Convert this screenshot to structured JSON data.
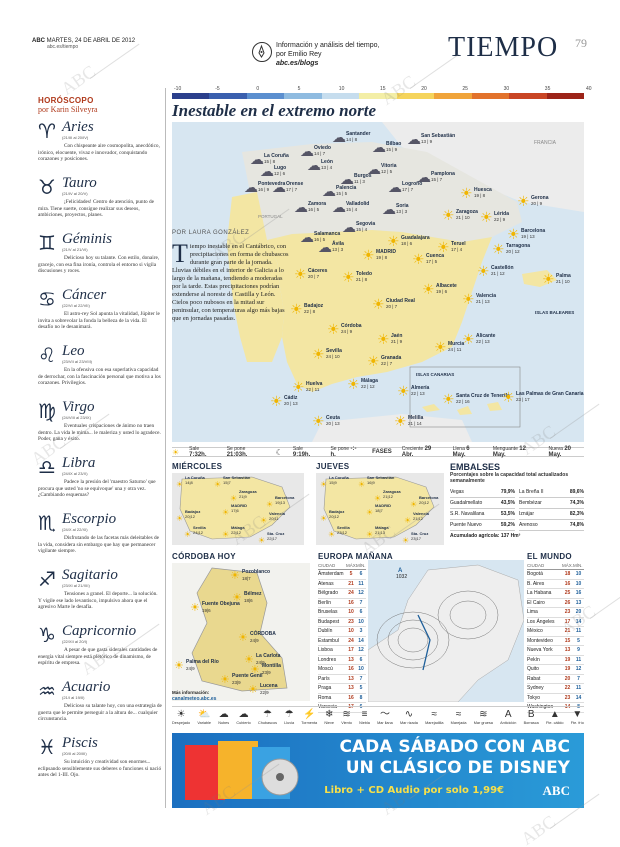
{
  "header": {
    "paper": "ABC",
    "date": "MARTES, 24 DE ABRIL DE 2012",
    "url": "abc.es/tiempo",
    "blog_text": "Información y análisis del tiempo, por Emilio Rey",
    "blog_url": "abc.es/blogs",
    "section": "TIEMPO",
    "page": "79"
  },
  "horoscope": {
    "title": "HORÓSCOPO",
    "author": "por Karin Silveyra",
    "signs": [
      {
        "glyph": "♈",
        "name": "Aries",
        "dates": "(21/III al 20/IV)",
        "text": "Con chispeante aire cosmopolita, anecdótico, irónico, elocuente, vivaz e innovador, conquistando corazones y posiciones."
      },
      {
        "glyph": "♉",
        "name": "Tauro",
        "dates": "(21/IV al 20/V)",
        "text": "¡Felicidades! Centro de atención, punto de mira. Tiene suerte, consigue realizar sus deseos, ambiciones, proyectos, planes."
      },
      {
        "glyph": "♊",
        "name": "Géminis",
        "dates": "(21/V al 21/VI)",
        "text": "Delicioso hoy su talante. Con estilo, donaire, gracejo, con esa fina ironía, controla el entorno si vigila discusiones y roces."
      },
      {
        "glyph": "♋",
        "name": "Cáncer",
        "dates": "(22/VI al 22/VII)",
        "text": "El astro-rey Sol apunta la vitalidad, Júpiter le invita a sobrevolar la fonda la belleza de la vida. El desafío no le desanimará."
      },
      {
        "glyph": "♌",
        "name": "Leo",
        "dates": "(23/VII al 23/VIII)",
        "text": "En la ofensiva con esa superlativa capacidad de derrochar, con la fascinación personal que motiva a los corazones. Privilegios."
      },
      {
        "glyph": "♍",
        "name": "Virgo",
        "dates": "(24/VIII al 23/IX)",
        "text": "Eventuales crispaciones de ánimo no traen dentro. La vida le mima... le maleriza y usted lo agradece. Poder, gana y éxito."
      },
      {
        "glyph": "♎",
        "name": "Libra",
        "dates": "(24/IX al 23/X)",
        "text": "Padece la presión del 'maestro Saturno' que procura que usted 'no se equivoque' una y otra vez. ¿Cambiando esquemas?"
      },
      {
        "glyph": "♏",
        "name": "Escorpio",
        "dates": "(24/X al 22/XI)",
        "text": "Disfrutando de las facetas más deleitables de la vida, considera sin embargo que hay que permanecer vigilante siempre."
      },
      {
        "glyph": "♐",
        "name": "Sagitario",
        "dates": "(23/XI al 21/XII)",
        "text": "Tensiones a granel. El deporte... la solución. Y vigile ese lado levantisco, impulsivo ahora que el agresivo Marte le desafía."
      },
      {
        "glyph": "♑",
        "name": "Capricornio",
        "dates": "(22/XII al 20/I)",
        "text": "A pesar de que gasta siderales cantidades de energía vital siempre está pletórico de dinamismo, de espíritu de empresa."
      },
      {
        "glyph": "♒",
        "name": "Acuario",
        "dates": "(21/I al 19/II)",
        "text": "Delicioso su talante hoy, con una estrategia de guerra que le permite perseguir a la altura de... cualquier circunstancia."
      },
      {
        "glyph": "♓",
        "name": "Piscis",
        "dates": "(20/II al 20/III)",
        "text": "Su intuición y creatividad son enormes... eclipsando sensiblemente sus deberes o funciones si nació antes del 1-III. Ojo."
      }
    ]
  },
  "scale": {
    "labels": [
      "-10",
      "-5",
      "0",
      "5",
      "10",
      "15",
      "20",
      "25",
      "30",
      "35",
      "40"
    ],
    "colors": [
      "#2b3f8c",
      "#3a5fae",
      "#5b8fcf",
      "#8fbbe0",
      "#c6ddee",
      "#f3eea6",
      "#f5d45c",
      "#f0a43a",
      "#e2722b",
      "#c94524",
      "#9c2318"
    ]
  },
  "headline": "Inestable en el extremo norte",
  "article": {
    "byline": "POR LAURA GONZÁLEZ",
    "dropcap": "T",
    "text": "iempo inestable en el Cantábrico, con precipitaciones en forma de chubascos durante gran parte de la jornada. Lluvias débiles en el interior de Galicia a lo largo de la mañana, tendiendo a moderadas por la tarde. Estas precipitaciones podrían extenderse al noreste de Castilla y León. Cielos poco nubosos en la mitad sur peninsular, con temperaturas algo más bajas que en jornadas pasadas."
  },
  "map": {
    "colors": {
      "sea": "#d7e6f1",
      "land_warm": "#f3e6a3",
      "land_mild": "#e6e6e0",
      "france": "#ececec"
    },
    "labels": {
      "france": "FRANCIA",
      "portugal": "PORTUGAL",
      "baleares": "ISLAS BALEARES",
      "canarias": "ISLAS CANARIAS"
    },
    "cities": [
      {
        "name": "Santander",
        "t": "14 | 8",
        "icon": "cloud"
      },
      {
        "name": "San Sebastián",
        "t": "13 | 9",
        "icon": "cloud"
      },
      {
        "name": "Oviedo",
        "t": "14 | 7",
        "icon": "cloud"
      },
      {
        "name": "Bilbao",
        "t": "15 | 9",
        "icon": "cloud"
      },
      {
        "name": "La Coruña",
        "t": "15 | 8",
        "icon": "cloud"
      },
      {
        "name": "Lugo",
        "t": "12 | 6",
        "icon": "cloud"
      },
      {
        "name": "Vitoria",
        "t": "12 | 5",
        "icon": "cloud"
      },
      {
        "name": "Pamplona",
        "t": "15 | 7",
        "icon": "cloud"
      },
      {
        "name": "Huesca",
        "t": "19 | 8",
        "icon": "sun"
      },
      {
        "name": "Gerona",
        "t": "20 | 9",
        "icon": "sun"
      },
      {
        "name": "Burgos",
        "t": "11 | 3",
        "icon": "cloud"
      },
      {
        "name": "León",
        "t": "13 | 4",
        "icon": "cloud"
      },
      {
        "name": "Palencia",
        "t": "15 | 5",
        "icon": "cloud"
      },
      {
        "name": "Logroño",
        "t": "17 | 7",
        "icon": "cloud"
      },
      {
        "name": "Zaragoza",
        "t": "21 | 10",
        "icon": "sun"
      },
      {
        "name": "Lérida",
        "t": "22 | 9",
        "icon": "sun"
      },
      {
        "name": "Barcelona",
        "t": "19 | 13",
        "icon": "sun"
      },
      {
        "name": "Pontevedra",
        "t": "16 | 9",
        "icon": "cloud"
      },
      {
        "name": "Orense",
        "t": "17 | 7",
        "icon": "cloud"
      },
      {
        "name": "Zamora",
        "t": "16 | 5",
        "icon": "cloud"
      },
      {
        "name": "Valladolid",
        "t": "15 | 4",
        "icon": "cloud"
      },
      {
        "name": "Soria",
        "t": "13 | 3",
        "icon": "cloud"
      },
      {
        "name": "Tarragona",
        "t": "20 | 12",
        "icon": "sun"
      },
      {
        "name": "Salamanca",
        "t": "16 | 5",
        "icon": "cloud"
      },
      {
        "name": "Segovia",
        "t": "15 | 4",
        "icon": "cloud"
      },
      {
        "name": "Guadalajara",
        "t": "18 | 6",
        "icon": "sun"
      },
      {
        "name": "Teruel",
        "t": "17 | 4",
        "icon": "sun"
      },
      {
        "name": "Ávila",
        "t": "13 | 3",
        "icon": "cloud"
      },
      {
        "name": "MADRID",
        "t": "19 | 8",
        "icon": "sun"
      },
      {
        "name": "Cuenca",
        "t": "17 | 5",
        "icon": "sun"
      },
      {
        "name": "Castellón",
        "t": "21 | 12",
        "icon": "sun"
      },
      {
        "name": "Palma",
        "t": "21 | 10",
        "icon": "sun"
      },
      {
        "name": "Cáceres",
        "t": "20 | 7",
        "icon": "sun"
      },
      {
        "name": "Toledo",
        "t": "21 | 8",
        "icon": "sun"
      },
      {
        "name": "Valencia",
        "t": "21 | 13",
        "icon": "sun"
      },
      {
        "name": "Ciudad Real",
        "t": "20 | 7",
        "icon": "sun"
      },
      {
        "name": "Albacete",
        "t": "19 | 6",
        "icon": "sun"
      },
      {
        "name": "Badajoz",
        "t": "22 | 8",
        "icon": "sun"
      },
      {
        "name": "Alicante",
        "t": "22 | 13",
        "icon": "sun"
      },
      {
        "name": "Córdoba",
        "t": "24 | 9",
        "icon": "sun"
      },
      {
        "name": "Jaén",
        "t": "21 | 9",
        "icon": "sun"
      },
      {
        "name": "Murcia",
        "t": "24 | 11",
        "icon": "sun"
      },
      {
        "name": "Sevilla",
        "t": "24 | 10",
        "icon": "sun"
      },
      {
        "name": "Granada",
        "t": "22 | 7",
        "icon": "sun"
      },
      {
        "name": "Huelva",
        "t": "22 | 11",
        "icon": "sun"
      },
      {
        "name": "Almería",
        "t": "22 | 13",
        "icon": "sun"
      },
      {
        "name": "Cádiz",
        "t": "20 | 13",
        "icon": "sun"
      },
      {
        "name": "Málaga",
        "t": "22 | 12",
        "icon": "sun"
      },
      {
        "name": "Ceuta",
        "t": "20 | 13",
        "icon": "sun"
      },
      {
        "name": "Melilla",
        "t": "21 | 14",
        "icon": "sun"
      },
      {
        "name": "Santa Cruz de Tenerife",
        "t": "22 | 16",
        "icon": "sun"
      },
      {
        "name": "Las Palmas de Gran Canaria",
        "t": "23 | 17",
        "icon": "sun"
      }
    ]
  },
  "sunline": {
    "sale_lbl": "Sale",
    "sale": "7:32h.",
    "pone_lbl": "Se pone",
    "pone": "21:03h.",
    "luna_sale_lbl": "Sale",
    "luna_sale": "9:19h.",
    "luna_pone_lbl": "Se pone",
    "luna_pone": "-:- h.",
    "fases": "FASES",
    "creciente": "Creciente",
    "creciente_d": "29 Abr.",
    "llena": "Llena",
    "llena_d": "6 May.",
    "menguante": "Menguante",
    "menguante_d": "12 May.",
    "nueva": "Nueva",
    "nueva_d": "20 May."
  },
  "forecast": {
    "miercoles": {
      "title": "MIÉRCOLES",
      "cities": [
        [
          "La Coruña",
          "14|8"
        ],
        [
          "San Sebastián",
          "15|7"
        ],
        [
          "Zaragoza",
          "21|9"
        ],
        [
          "Barcelona",
          "19|13"
        ],
        [
          "Badajoz",
          "20|12"
        ],
        [
          "MADRID",
          "17|6"
        ],
        [
          "Valencia",
          "20|11"
        ],
        [
          "Sevilla",
          "24|12"
        ],
        [
          "Málaga",
          "22|12"
        ],
        [
          "Sta. Cruz",
          "22|17"
        ]
      ]
    },
    "jueves": {
      "title": "JUEVES",
      "cities": [
        [
          "La Coruña",
          "15|9"
        ],
        [
          "San Sebastián",
          "16|9"
        ],
        [
          "Zaragoza",
          "21|12"
        ],
        [
          "Barcelona",
          "20|12"
        ],
        [
          "Badajoz",
          "20|12"
        ],
        [
          "MADRID",
          "18|7"
        ],
        [
          "Valencia",
          "21|12"
        ],
        [
          "Sevilla",
          "23|12"
        ],
        [
          "Málaga",
          "21|13"
        ],
        [
          "Sta. Cruz",
          "23|17"
        ]
      ]
    }
  },
  "embalses": {
    "title": "EMBALSES",
    "subtitle": "Porcentajes sobre la capacidad total actualizados semanalmente",
    "left": [
      [
        "Vegas",
        "79,9%"
      ],
      [
        "Guadalmellato",
        "43,5%"
      ],
      [
        "S.R. Navalilana",
        "53,5%"
      ],
      [
        "Puente Nuevo",
        "59,2%"
      ]
    ],
    "right": [
      [
        "La Breña II",
        "89,6%"
      ],
      [
        "Bembézar",
        "74,3%"
      ],
      [
        "Iznájar",
        "82,3%"
      ],
      [
        "Arenoso",
        "74,8%"
      ]
    ],
    "total": "Acumulado agrícola: 137 Hm³"
  },
  "cordoba": {
    "title": "CÓRDOBA HOY",
    "towns": [
      [
        "Pozoblanco",
        "18|7"
      ],
      [
        "Bélmez",
        "18|6"
      ],
      [
        "Fuente Obejuna",
        "19|6"
      ],
      [
        "CÓRDOBA",
        "24|9"
      ],
      [
        "La Carlota",
        "24|9"
      ],
      [
        "Montilla",
        "23|9"
      ],
      [
        "Palma del Río",
        "24|9"
      ],
      [
        "Puente Genil",
        "23|9"
      ],
      [
        "Lucena",
        "22|9"
      ]
    ],
    "footer_lbl": "Más información:",
    "footer_url": "canalmeteo.abc.es"
  },
  "europa": {
    "title": "EUROPA MAÑANA",
    "cols": [
      "CIUDAD",
      "MÁX.",
      "MÍN."
    ],
    "rows": [
      [
        "Ámsterdam",
        "5",
        "6"
      ],
      [
        "Atenas",
        "21",
        "11"
      ],
      [
        "Bélgrado",
        "24",
        "12"
      ],
      [
        "Berlín",
        "16",
        "7"
      ],
      [
        "Bruselas",
        "10",
        "6"
      ],
      [
        "Budapest",
        "23",
        "10"
      ],
      [
        "Dublín",
        "10",
        "3"
      ],
      [
        "Estambul",
        "24",
        "14"
      ],
      [
        "Lisboa",
        "17",
        "12"
      ],
      [
        "Londres",
        "13",
        "6"
      ],
      [
        "Moscú",
        "16",
        "10"
      ],
      [
        "París",
        "13",
        "7"
      ],
      [
        "Praga",
        "13",
        "5"
      ],
      [
        "Roma",
        "16",
        "8"
      ],
      [
        "Varsovia",
        "17",
        "6"
      ]
    ],
    "pressure": "1032"
  },
  "mundo": {
    "title": "EL MUNDO",
    "cols": [
      "CIUDAD",
      "MÁX.",
      "MÍN."
    ],
    "rows": [
      [
        "Bogotá",
        "18",
        "10"
      ],
      [
        "B. Aires",
        "16",
        "10"
      ],
      [
        "La Habana",
        "25",
        "16"
      ],
      [
        "El Cairo",
        "26",
        "13"
      ],
      [
        "Lima",
        "23",
        "20"
      ],
      [
        "Los Ángeles",
        "17",
        "14"
      ],
      [
        "México",
        "21",
        "11"
      ],
      [
        "Montevideo",
        "15",
        "5"
      ],
      [
        "Nueva York",
        "13",
        "9"
      ],
      [
        "Pekín",
        "19",
        "11"
      ],
      [
        "Quito",
        "19",
        "12"
      ],
      [
        "Rabat",
        "20",
        "7"
      ],
      [
        "Sydney",
        "22",
        "11"
      ],
      [
        "Tokyo",
        "23",
        "14"
      ],
      [
        "Washington",
        "14",
        "8"
      ]
    ]
  },
  "legend": [
    {
      "g": "☀",
      "l": "Despejado"
    },
    {
      "g": "⛅",
      "l": "Variable"
    },
    {
      "g": "☁",
      "l": "Nubes"
    },
    {
      "g": "☁",
      "l": "Cubierto"
    },
    {
      "g": "☂",
      "l": "Chubascos"
    },
    {
      "g": "☂",
      "l": "Lluvia"
    },
    {
      "g": "⚡",
      "l": "Tormenta"
    },
    {
      "g": "❄",
      "l": "Nieve"
    },
    {
      "g": "≋",
      "l": "Viento"
    },
    {
      "g": "≡",
      "l": "Niebla"
    },
    {
      "g": "〜",
      "l": "Mar llana"
    },
    {
      "g": "∿",
      "l": "Mar rizada"
    },
    {
      "g": "≈",
      "l": "Marejadilla"
    },
    {
      "g": "≈",
      "l": "Marejada"
    },
    {
      "g": "≋",
      "l": "Mar gruesa"
    },
    {
      "g": "A",
      "l": "Anticiclón"
    },
    {
      "g": "B",
      "l": "Borrasca"
    },
    {
      "g": "▲",
      "l": "Fte. cálido"
    },
    {
      "g": "▼",
      "l": "Fte. frío"
    }
  ],
  "ad": {
    "line1": "CADA SÁBADO CON ABC",
    "line2": "UN CLÁSICO DE DISNEY",
    "line3": "Libro + CD Audio por solo 1,99€",
    "brand": "ABC"
  },
  "watermark": "ABC"
}
